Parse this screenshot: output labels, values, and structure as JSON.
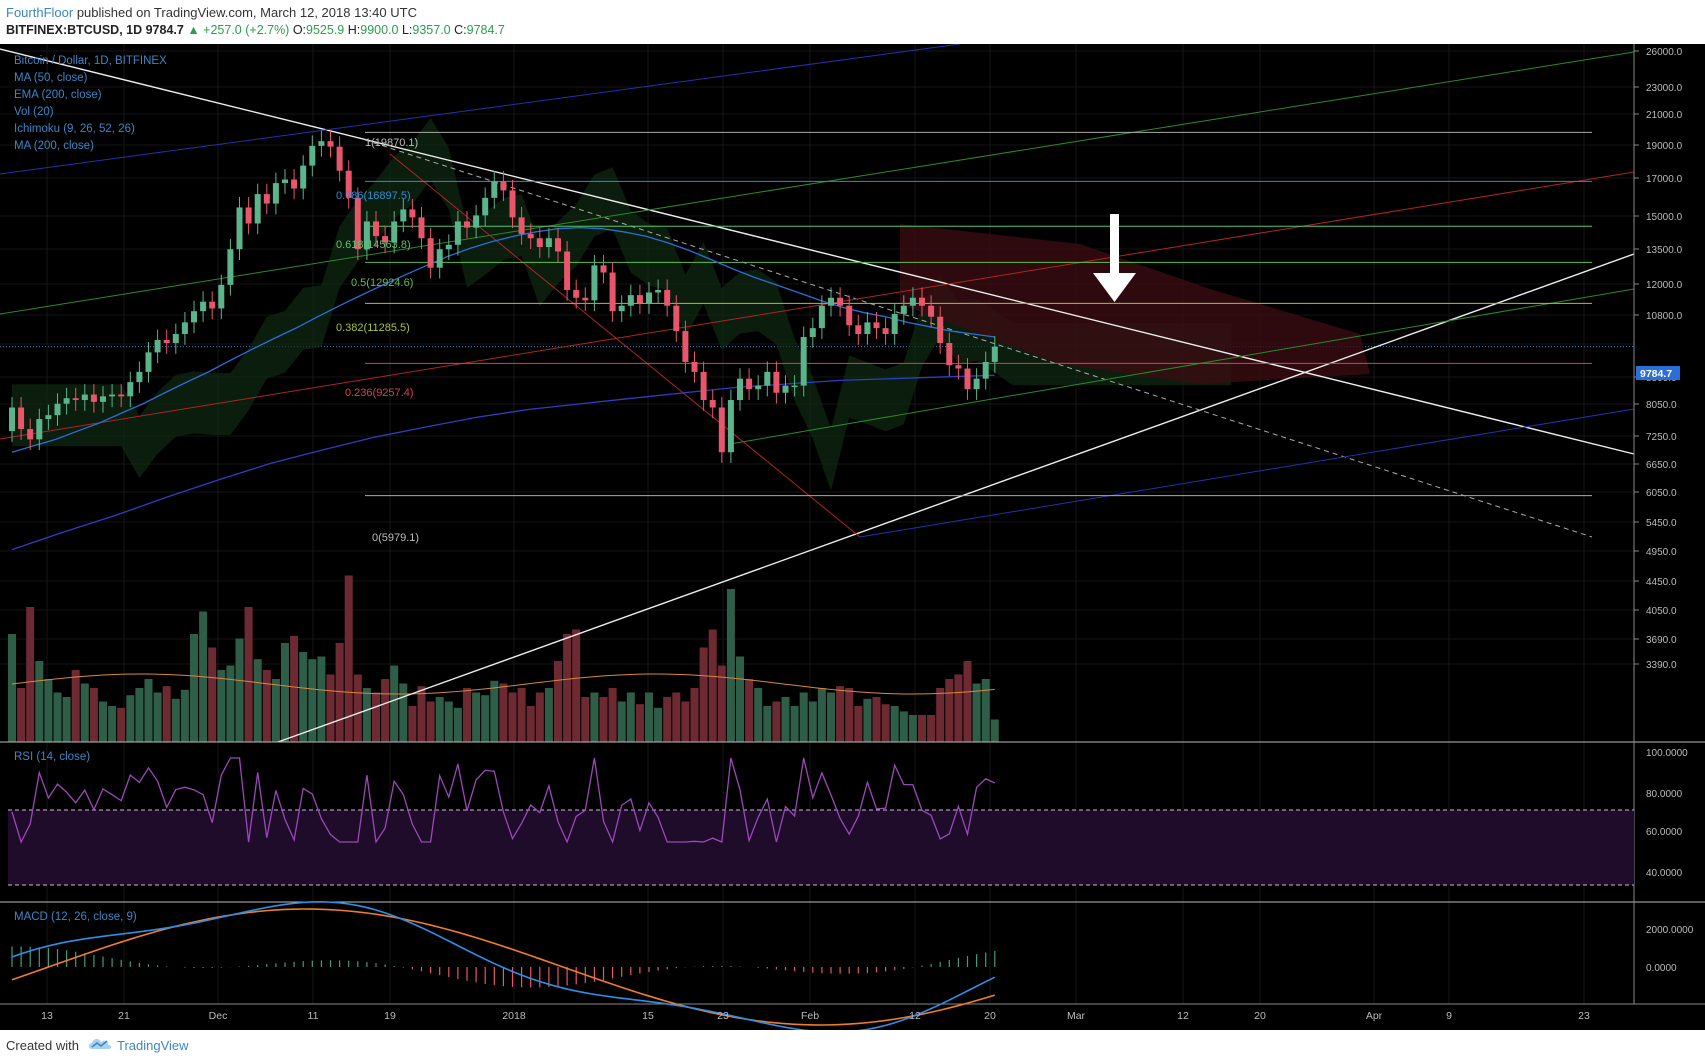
{
  "header": {
    "author": "FourthFloor",
    "published": "published on TradingView.com, March 12, 2018 13:40 UTC",
    "symbol": "BITFINEX:BTCUSD, 1D",
    "last": "9784.7",
    "change": "▲ +257.0 (+2.7%)",
    "o_label": "O:",
    "o_value": "9525.9",
    "h_label": "H:",
    "h_value": "9900.0",
    "l_label": "L:",
    "l_value": "9357.0",
    "c_label": "C:",
    "c_value": "9784.7"
  },
  "legend": {
    "main": "Bitcoin / Dollar, 1D, BITFINEX",
    "items": [
      "MA (50, close)",
      "EMA (200, close)",
      "Vol (20)",
      "Ichimoku (9, 26, 52, 26)",
      "MA (200, close)"
    ]
  },
  "fib_labels": [
    "1(19870.1)",
    "0.786(16897.5)",
    "0.618(14563.8)",
    "0.5(12924.6)",
    "0.382(11285.5)",
    "0.236(9257.4)",
    "0(5979.1)"
  ],
  "price_badge": "9784.7",
  "rsi_label": "RSI (14, close)",
  "macd_label": "MACD (12, 26, close, 9)",
  "footer": {
    "created": "Created with",
    "brand": "TradingView"
  },
  "colors": {
    "background": "#000000",
    "up": "#5bb48b",
    "down": "#e8566b",
    "volume_up": "#2f5e48",
    "volume_down": "#6e2a33",
    "ma_blue": "#2a6fd6",
    "rsi_line": "#9b48b8",
    "macd_line": "#2d8fe8",
    "signal_line": "#f07d2b"
  },
  "chart_data": {
    "type": "candlestick",
    "title": "Bitcoin / Dollar, 1D, BITFINEX",
    "y_ticks": [
      "26000.0",
      "23000.0",
      "21000.0",
      "19000.0",
      "17000.0",
      "15000.0",
      "13500.0",
      "12000.0",
      "10800.0",
      "9784.7",
      "8800.0",
      "8050.0",
      "7250.0",
      "6650.0",
      "6050.0",
      "5450.0",
      "4950.0",
      "4450.0",
      "4050.0",
      "3690.0",
      "3390.0"
    ],
    "x_ticks": [
      "13",
      "21",
      "Dec",
      "11",
      "19",
      "2018",
      "15",
      "23",
      "Feb",
      "12",
      "20",
      "Mar",
      "12",
      "20",
      "Apr",
      "9",
      "23"
    ],
    "ylim": [
      3150,
      28000
    ],
    "candles_close": [
      8000,
      7450,
      7200,
      7700,
      7800,
      8100,
      8250,
      8200,
      8350,
      8150,
      8300,
      8350,
      8300,
      8700,
      9000,
      9600,
      10000,
      9900,
      10200,
      10600,
      11000,
      11350,
      11100,
      12000,
      13500,
      15500,
      14700,
      16200,
      15700,
      16800,
      17000,
      16500,
      17800,
      19000,
      19300,
      18950,
      17500,
      16000,
      13500,
      14800,
      14100,
      13800,
      14800,
      15400,
      15000,
      14000,
      12700,
      13500,
      13700,
      14800,
      14500,
      15100,
      16000,
      16900,
      16400,
      15000,
      14200,
      14000,
      13600,
      14000,
      13400,
      11800,
      11500,
      11400,
      12800,
      12500,
      11000,
      11200,
      11600,
      11300,
      11700,
      11800,
      11200,
      10300,
      9300,
      9000,
      8200,
      8000,
      6900,
      8200,
      8800,
      8500,
      8600,
      9000,
      8400,
      8600,
      8600,
      10100,
      10400,
      11200,
      11500,
      11200,
      10500,
      10200,
      10600,
      10400,
      10200,
      10900,
      11200,
      11500,
      11200,
      10800,
      9900,
      9200,
      9100,
      8500,
      8800,
      9300,
      9784.7
    ],
    "ma50": [
      6900,
      7050,
      7200,
      7400,
      7600,
      7850,
      8100,
      8400,
      8700,
      9000,
      9350,
      9700,
      10050,
      10400,
      10800,
      11200,
      11600,
      12000,
      12400,
      12800,
      13200,
      13550,
      13850,
      14100,
      14300,
      14450,
      14500,
      14450,
      14300,
      14100,
      13800,
      13450,
      13050,
      12650,
      12300,
      12000,
      11700,
      11400,
      11150,
      10950,
      10800,
      10600,
      10450,
      10300,
      10200,
      10100
    ],
    "ema200": [
      5000,
      5300,
      5600,
      5950,
      6300,
      6650,
      6950,
      7250,
      7500,
      7750,
      7950,
      8100,
      8250,
      8400,
      8550,
      8650,
      8750,
      8800,
      8850,
      8900
    ],
    "fib_levels": {
      "1": 19870.1,
      "0.786": 16897.5,
      "0.618": 14563.8,
      "0.5": 12924.6,
      "0.382": 11285.5,
      "0.236": 9257.4,
      "0": 5979.1
    },
    "rsi": {
      "ticks": [
        "100.0000",
        "80.0000",
        "60.0000",
        "40.0000"
      ],
      "bands": [
        70,
        30
      ]
    },
    "macd": {
      "ticks": [
        "2000.0000",
        "0.0000"
      ]
    }
  }
}
